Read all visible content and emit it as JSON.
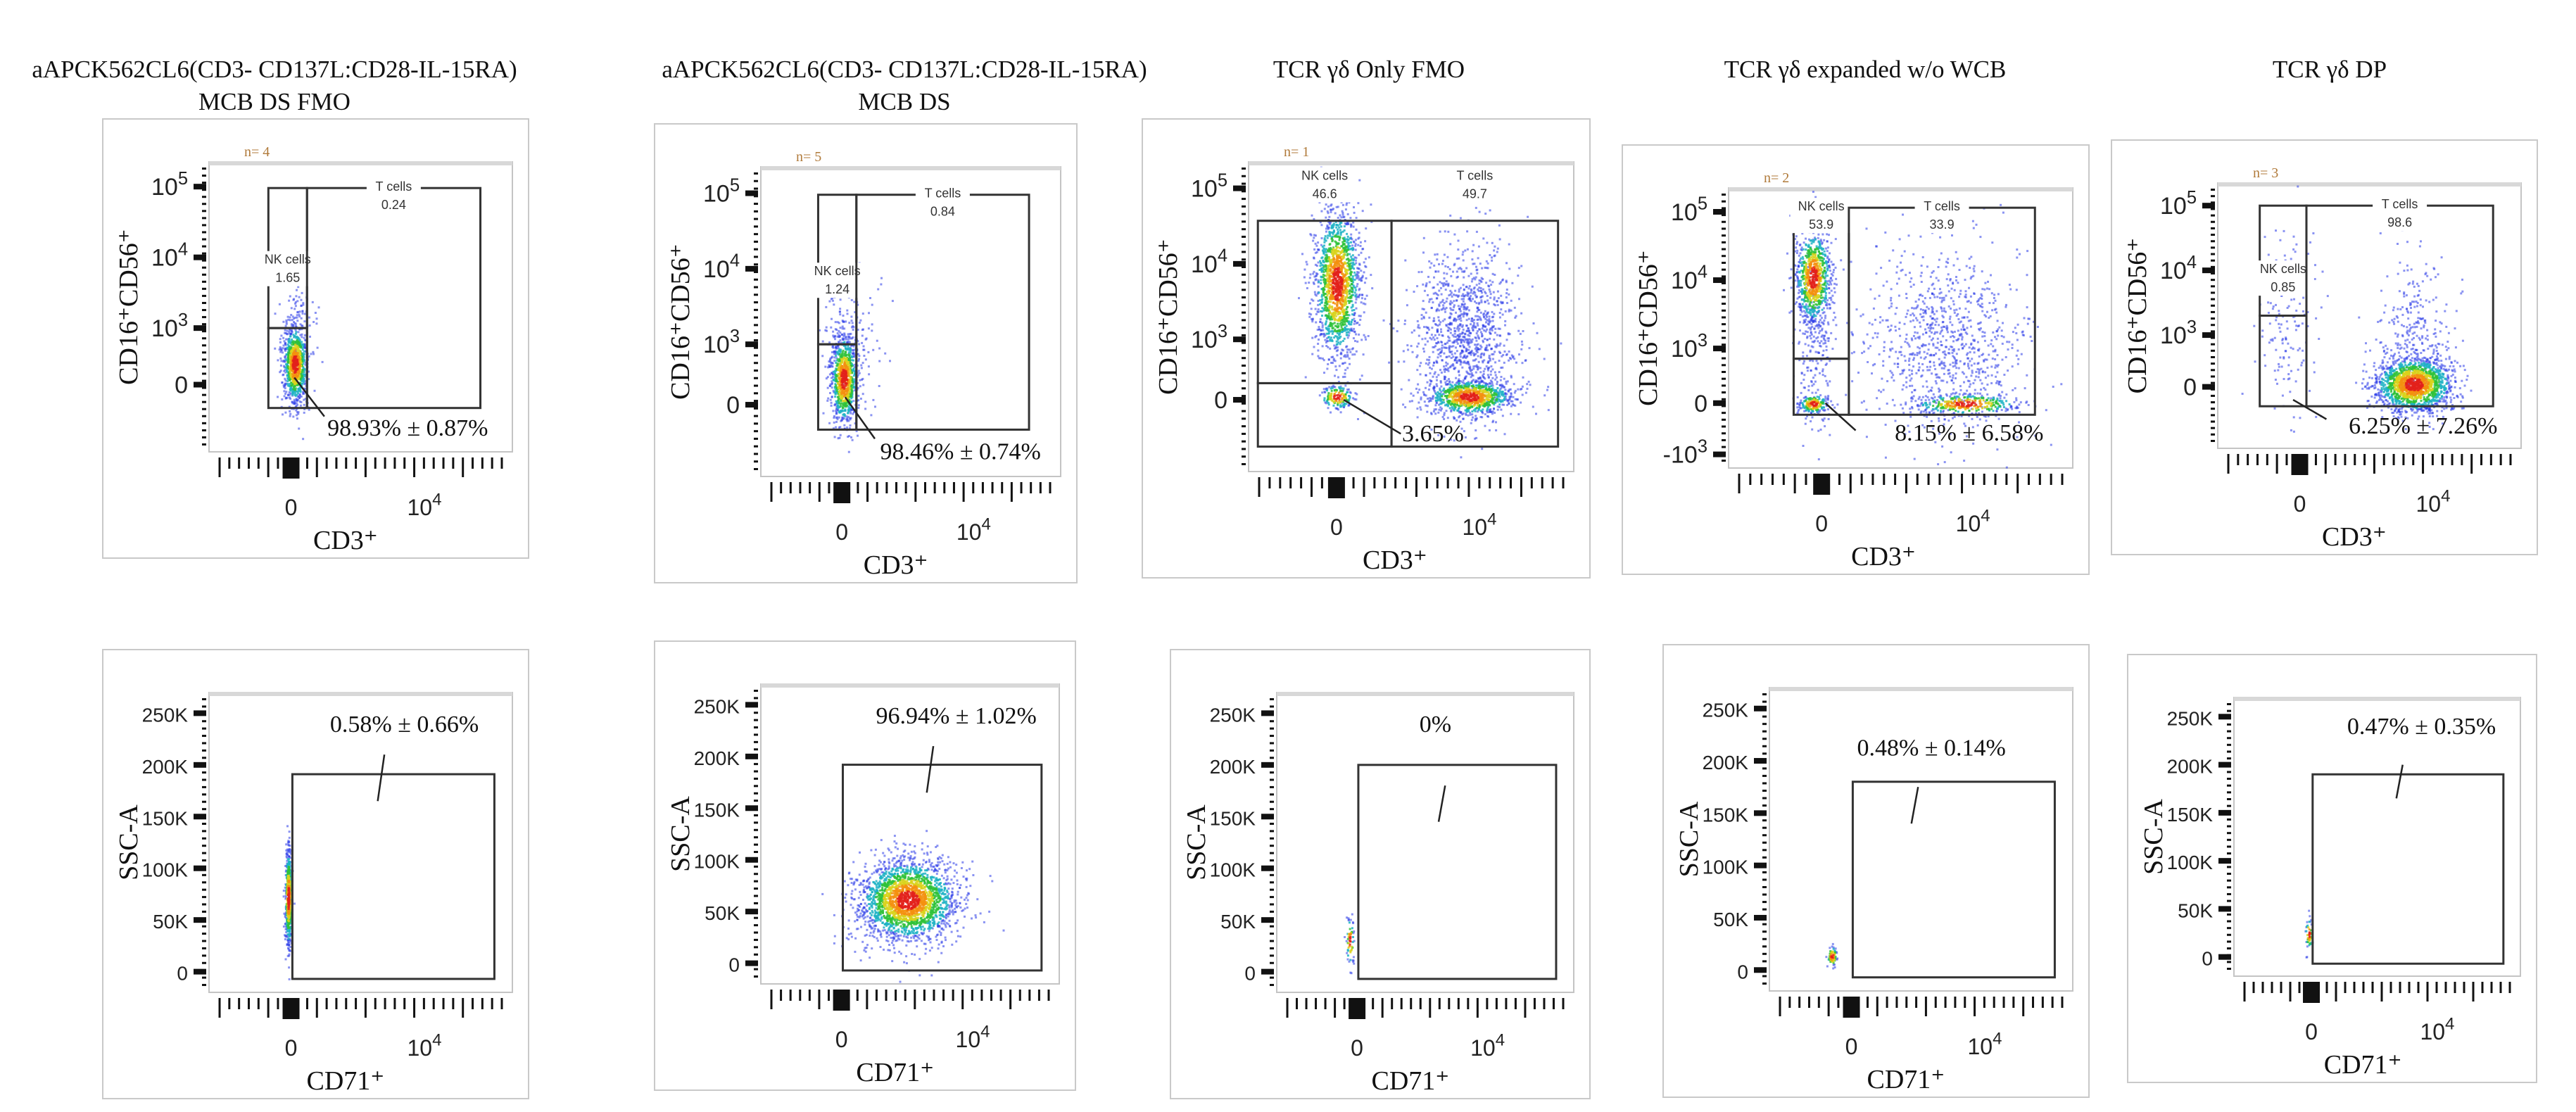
{
  "figure": {
    "titles": [
      [
        "aAPCK562CL6(CD3- CD137L:CD28-IL-15RA)",
        "MCB DS FMO"
      ],
      [
        "aAPCK562CL6(CD3- CD137L:CD28-IL-15RA)",
        "MCB DS"
      ],
      [
        "TCR γδ Only FMO"
      ],
      [
        "TCR γδ expanded w/o WCB"
      ],
      [
        "TCR γδ DP"
      ]
    ]
  },
  "axes": {
    "top": {
      "xlabel": "CD3⁺",
      "ylabel": "CD16⁺CD56⁺",
      "xlim": [
        -1.23,
        3.32
      ],
      "ylim": [
        -0.95,
        3.15
      ],
      "x_ticks": [
        {
          "v": 0,
          "label": "0"
        },
        {
          "v": 2,
          "base": "10",
          "exp": "4"
        }
      ],
      "y_ticks": [
        {
          "v": 0,
          "label": "0"
        },
        {
          "v": 0.8,
          "base": "10",
          "exp": "3"
        },
        {
          "v": 1.8,
          "base": "10",
          "exp": "4"
        },
        {
          "v": 2.8,
          "base": "10",
          "exp": "5"
        }
      ]
    },
    "bottom": {
      "xlabel": "CD71⁺",
      "ylabel": "SSC-A",
      "xlim": [
        -1.23,
        3.32
      ],
      "ylim": [
        -20000,
        270000
      ],
      "x_ticks": [
        {
          "v": 0,
          "label": "0"
        },
        {
          "v": 2,
          "base": "10",
          "exp": "4"
        }
      ],
      "y_ticks": [
        {
          "v": 0,
          "label": "0"
        },
        {
          "v": 50000,
          "label": "50K"
        },
        {
          "v": 100000,
          "label": "100K"
        },
        {
          "v": 150000,
          "label": "150K"
        },
        {
          "v": 200000,
          "label": "200K"
        },
        {
          "v": 250000,
          "label": "250K"
        }
      ]
    }
  },
  "chart_data": [
    {
      "type": "scatter",
      "row": "top",
      "n_label": "n= 4",
      "gates": [
        {
          "name": "NK cells",
          "value": "1.65",
          "x": [
            -0.34,
            0.24
          ],
          "y": [
            0.8,
            2.78
          ],
          "label_y": 1.75
        },
        {
          "name": "T cells",
          "value": "0.24",
          "x": [
            0.24,
            2.84
          ],
          "y": [
            -0.33,
            2.78
          ]
        },
        {
          "x": [
            -0.34,
            0.24
          ],
          "y": [
            -0.33,
            0.8
          ]
        }
      ],
      "annotation": {
        "text": "98.93% ± 0.87%",
        "at": [
          1.75,
          -0.72
        ],
        "from": [
          0.05,
          0.1
        ],
        "to": [
          0.5,
          -0.45
        ]
      },
      "populations": [
        {
          "cx": 0.05,
          "cy": 0.3,
          "sx": 0.09,
          "sy": 0.28,
          "n": 900
        },
        {
          "cx": 0.1,
          "cy": 0.9,
          "sx": 0.15,
          "sy": 0.35,
          "n": 80,
          "sparse": true
        }
      ]
    },
    {
      "type": "scatter",
      "row": "top",
      "n_label": "n= 5",
      "gates": [
        {
          "name": "NK cells",
          "value": "1.24",
          "x": [
            -0.36,
            0.22
          ],
          "y": [
            0.8,
            2.78
          ],
          "label_y": 1.75
        },
        {
          "name": "T cells",
          "value": "0.84",
          "x": [
            0.22,
            2.84
          ],
          "y": [
            -0.33,
            2.78
          ]
        },
        {
          "x": [
            -0.36,
            0.22
          ],
          "y": [
            -0.33,
            0.8
          ]
        }
      ],
      "annotation": {
        "text": "98.46% ± 0.74%",
        "at": [
          1.8,
          -0.72
        ],
        "from": [
          0.05,
          0.1
        ],
        "to": [
          0.5,
          -0.45
        ]
      },
      "populations": [
        {
          "cx": 0.02,
          "cy": 0.35,
          "sx": 0.1,
          "sy": 0.3,
          "n": 900
        },
        {
          "cx": 0.15,
          "cy": 0.9,
          "sx": 0.25,
          "sy": 0.45,
          "n": 120,
          "sparse": true
        }
      ]
    },
    {
      "type": "scatter",
      "row": "top",
      "n_label": "n= 1",
      "gates": [
        {
          "name": "NK cells",
          "value": "46.6",
          "x": [
            -1.1,
            0.77
          ],
          "y": [
            0.22,
            2.37
          ],
          "label_y": 2.95
        },
        {
          "name": "T cells",
          "value": "49.7",
          "x": [
            0.77,
            3.1
          ],
          "y": [
            -0.62,
            2.37
          ],
          "label_y": 2.95
        },
        {
          "x": [
            -1.1,
            0.77
          ],
          "y": [
            -0.62,
            0.22
          ]
        }
      ],
      "annotation": {
        "text": "3.65%",
        "at": [
          1.35,
          -0.55
        ],
        "from": [
          0.1,
          0.0
        ],
        "to": [
          0.9,
          -0.45
        ]
      },
      "populations": [
        {
          "cx": 0.0,
          "cy": 1.55,
          "sx": 0.16,
          "sy": 0.5,
          "n": 1500
        },
        {
          "cx": 1.85,
          "cy": 0.05,
          "sx": 0.3,
          "sy": 0.12,
          "n": 900
        },
        {
          "cx": 1.8,
          "cy": 0.9,
          "sx": 0.35,
          "sy": 0.55,
          "n": 1100,
          "sparse": true
        },
        {
          "cx": 0.0,
          "cy": 0.05,
          "sx": 0.12,
          "sy": 0.08,
          "n": 150
        }
      ]
    },
    {
      "type": "scatter",
      "row": "top",
      "n_label": "n= 2",
      "extra_y_ticks": [
        {
          "v": -0.75,
          "base": "-10",
          "exp": "3"
        }
      ],
      "gates": [
        {
          "name": "NK cells",
          "value": "53.9",
          "x": [
            -0.37,
            0.36
          ],
          "y": [
            0.65,
            2.86
          ]
        },
        {
          "name": "T cells",
          "value": "33.9",
          "x": [
            0.36,
            2.82
          ],
          "y": [
            -0.17,
            2.86
          ]
        },
        {
          "x": [
            -0.37,
            0.36
          ],
          "y": [
            -0.17,
            0.65
          ]
        }
      ],
      "annotation": {
        "text": "8.15% ± 6.58%",
        "at": [
          1.95,
          -0.55
        ],
        "from": [
          0.05,
          0.0
        ],
        "to": [
          0.45,
          -0.4
        ]
      },
      "populations": [
        {
          "cx": -0.12,
          "cy": 1.85,
          "sx": 0.12,
          "sy": 0.35,
          "n": 800
        },
        {
          "cx": -0.12,
          "cy": 0.0,
          "sx": 0.1,
          "sy": 0.07,
          "n": 180
        },
        {
          "cx": 1.9,
          "cy": 0.0,
          "sx": 0.35,
          "sy": 0.08,
          "n": 350
        },
        {
          "cx": 1.6,
          "cy": 0.9,
          "sx": 0.55,
          "sy": 0.7,
          "n": 900,
          "sparse": true
        },
        {
          "cx": -0.1,
          "cy": 1.0,
          "sx": 0.12,
          "sy": 0.7,
          "n": 250,
          "sparse": true
        }
      ]
    },
    {
      "type": "scatter",
      "row": "top",
      "n_label": "n= 3",
      "gates": [
        {
          "name": "NK cells",
          "value": "0.85",
          "x": [
            -0.6,
            0.1
          ],
          "y": [
            1.1,
            2.8
          ],
          "label_y": 1.8
        },
        {
          "name": "T cells",
          "value": "98.6",
          "x": [
            0.1,
            2.9
          ],
          "y": [
            -0.3,
            2.8
          ]
        },
        {
          "x": [
            -0.6,
            0.1
          ],
          "y": [
            -0.3,
            1.1
          ]
        }
      ],
      "annotation": {
        "text": "6.25% ± 7.26%",
        "at": [
          1.85,
          -0.72
        ],
        "from": [
          -0.1,
          -0.2
        ],
        "to": [
          0.4,
          -0.5
        ]
      },
      "populations": [
        {
          "cx": 1.7,
          "cy": 0.05,
          "sx": 0.3,
          "sy": 0.22,
          "n": 1600
        },
        {
          "cx": 1.7,
          "cy": 0.9,
          "sx": 0.25,
          "sy": 0.55,
          "n": 250,
          "sparse": true
        },
        {
          "cx": -0.2,
          "cy": 1.0,
          "sx": 0.2,
          "sy": 0.7,
          "n": 150,
          "sparse": true
        }
      ]
    },
    {
      "type": "scatter",
      "row": "bottom",
      "gates": [
        {
          "x": [
            0.02,
            3.05
          ],
          "y": [
            -7000,
            191000
          ]
        }
      ],
      "annotation": {
        "text": "0.58% ± 0.66%",
        "at": [
          1.7,
          232000
        ],
        "from": [
          1.4,
          210000
        ],
        "to": [
          1.3,
          165000
        ]
      },
      "populations": [
        {
          "cx": -0.05,
          "cy": 72000,
          "sx": 0.025,
          "sy": 24000,
          "n": 500
        }
      ]
    },
    {
      "type": "scatter",
      "row": "bottom",
      "gates": [
        {
          "x": [
            0.02,
            3.05
          ],
          "y": [
            -7000,
            192000
          ]
        }
      ],
      "annotation": {
        "text": "96.94% ± 1.02%",
        "at": [
          1.75,
          232000
        ],
        "from": [
          1.4,
          210000
        ],
        "to": [
          1.3,
          165000
        ]
      },
      "populations": [
        {
          "cx": 1.0,
          "cy": 62000,
          "sx": 0.38,
          "sy": 20000,
          "n": 2200
        }
      ]
    },
    {
      "type": "scatter",
      "row": "bottom",
      "gates": [
        {
          "x": [
            0.02,
            3.05
          ],
          "y": [
            -7000,
            200000
          ]
        }
      ],
      "annotation": {
        "text": "0%",
        "at": [
          1.2,
          232000
        ],
        "from": [
          1.35,
          180000
        ],
        "to": [
          1.25,
          145000
        ]
      },
      "populations": [
        {
          "cx": -0.12,
          "cy": 30000,
          "sx": 0.03,
          "sy": 12000,
          "n": 60
        }
      ]
    },
    {
      "type": "scatter",
      "row": "bottom",
      "gates": [
        {
          "x": [
            0.02,
            3.05
          ],
          "y": [
            -7000,
            180000
          ]
        }
      ],
      "annotation": {
        "text": "0.48% ± 0.14%",
        "at": [
          1.2,
          205000
        ],
        "from": [
          1.0,
          175000
        ],
        "to": [
          0.9,
          140000
        ]
      },
      "populations": [
        {
          "cx": -0.3,
          "cy": 14000,
          "sx": 0.04,
          "sy": 5000,
          "n": 70
        }
      ]
    },
    {
      "type": "scatter",
      "row": "bottom",
      "gates": [
        {
          "x": [
            0.02,
            3.05
          ],
          "y": [
            -7000,
            190000
          ]
        }
      ],
      "annotation": {
        "text": "0.47% ± 0.35%",
        "at": [
          1.75,
          232000
        ],
        "from": [
          1.45,
          200000
        ],
        "to": [
          1.35,
          165000
        ]
      },
      "populations": [
        {
          "cx": -0.05,
          "cy": 25000,
          "sx": 0.03,
          "sy": 8000,
          "n": 50
        }
      ]
    }
  ]
}
